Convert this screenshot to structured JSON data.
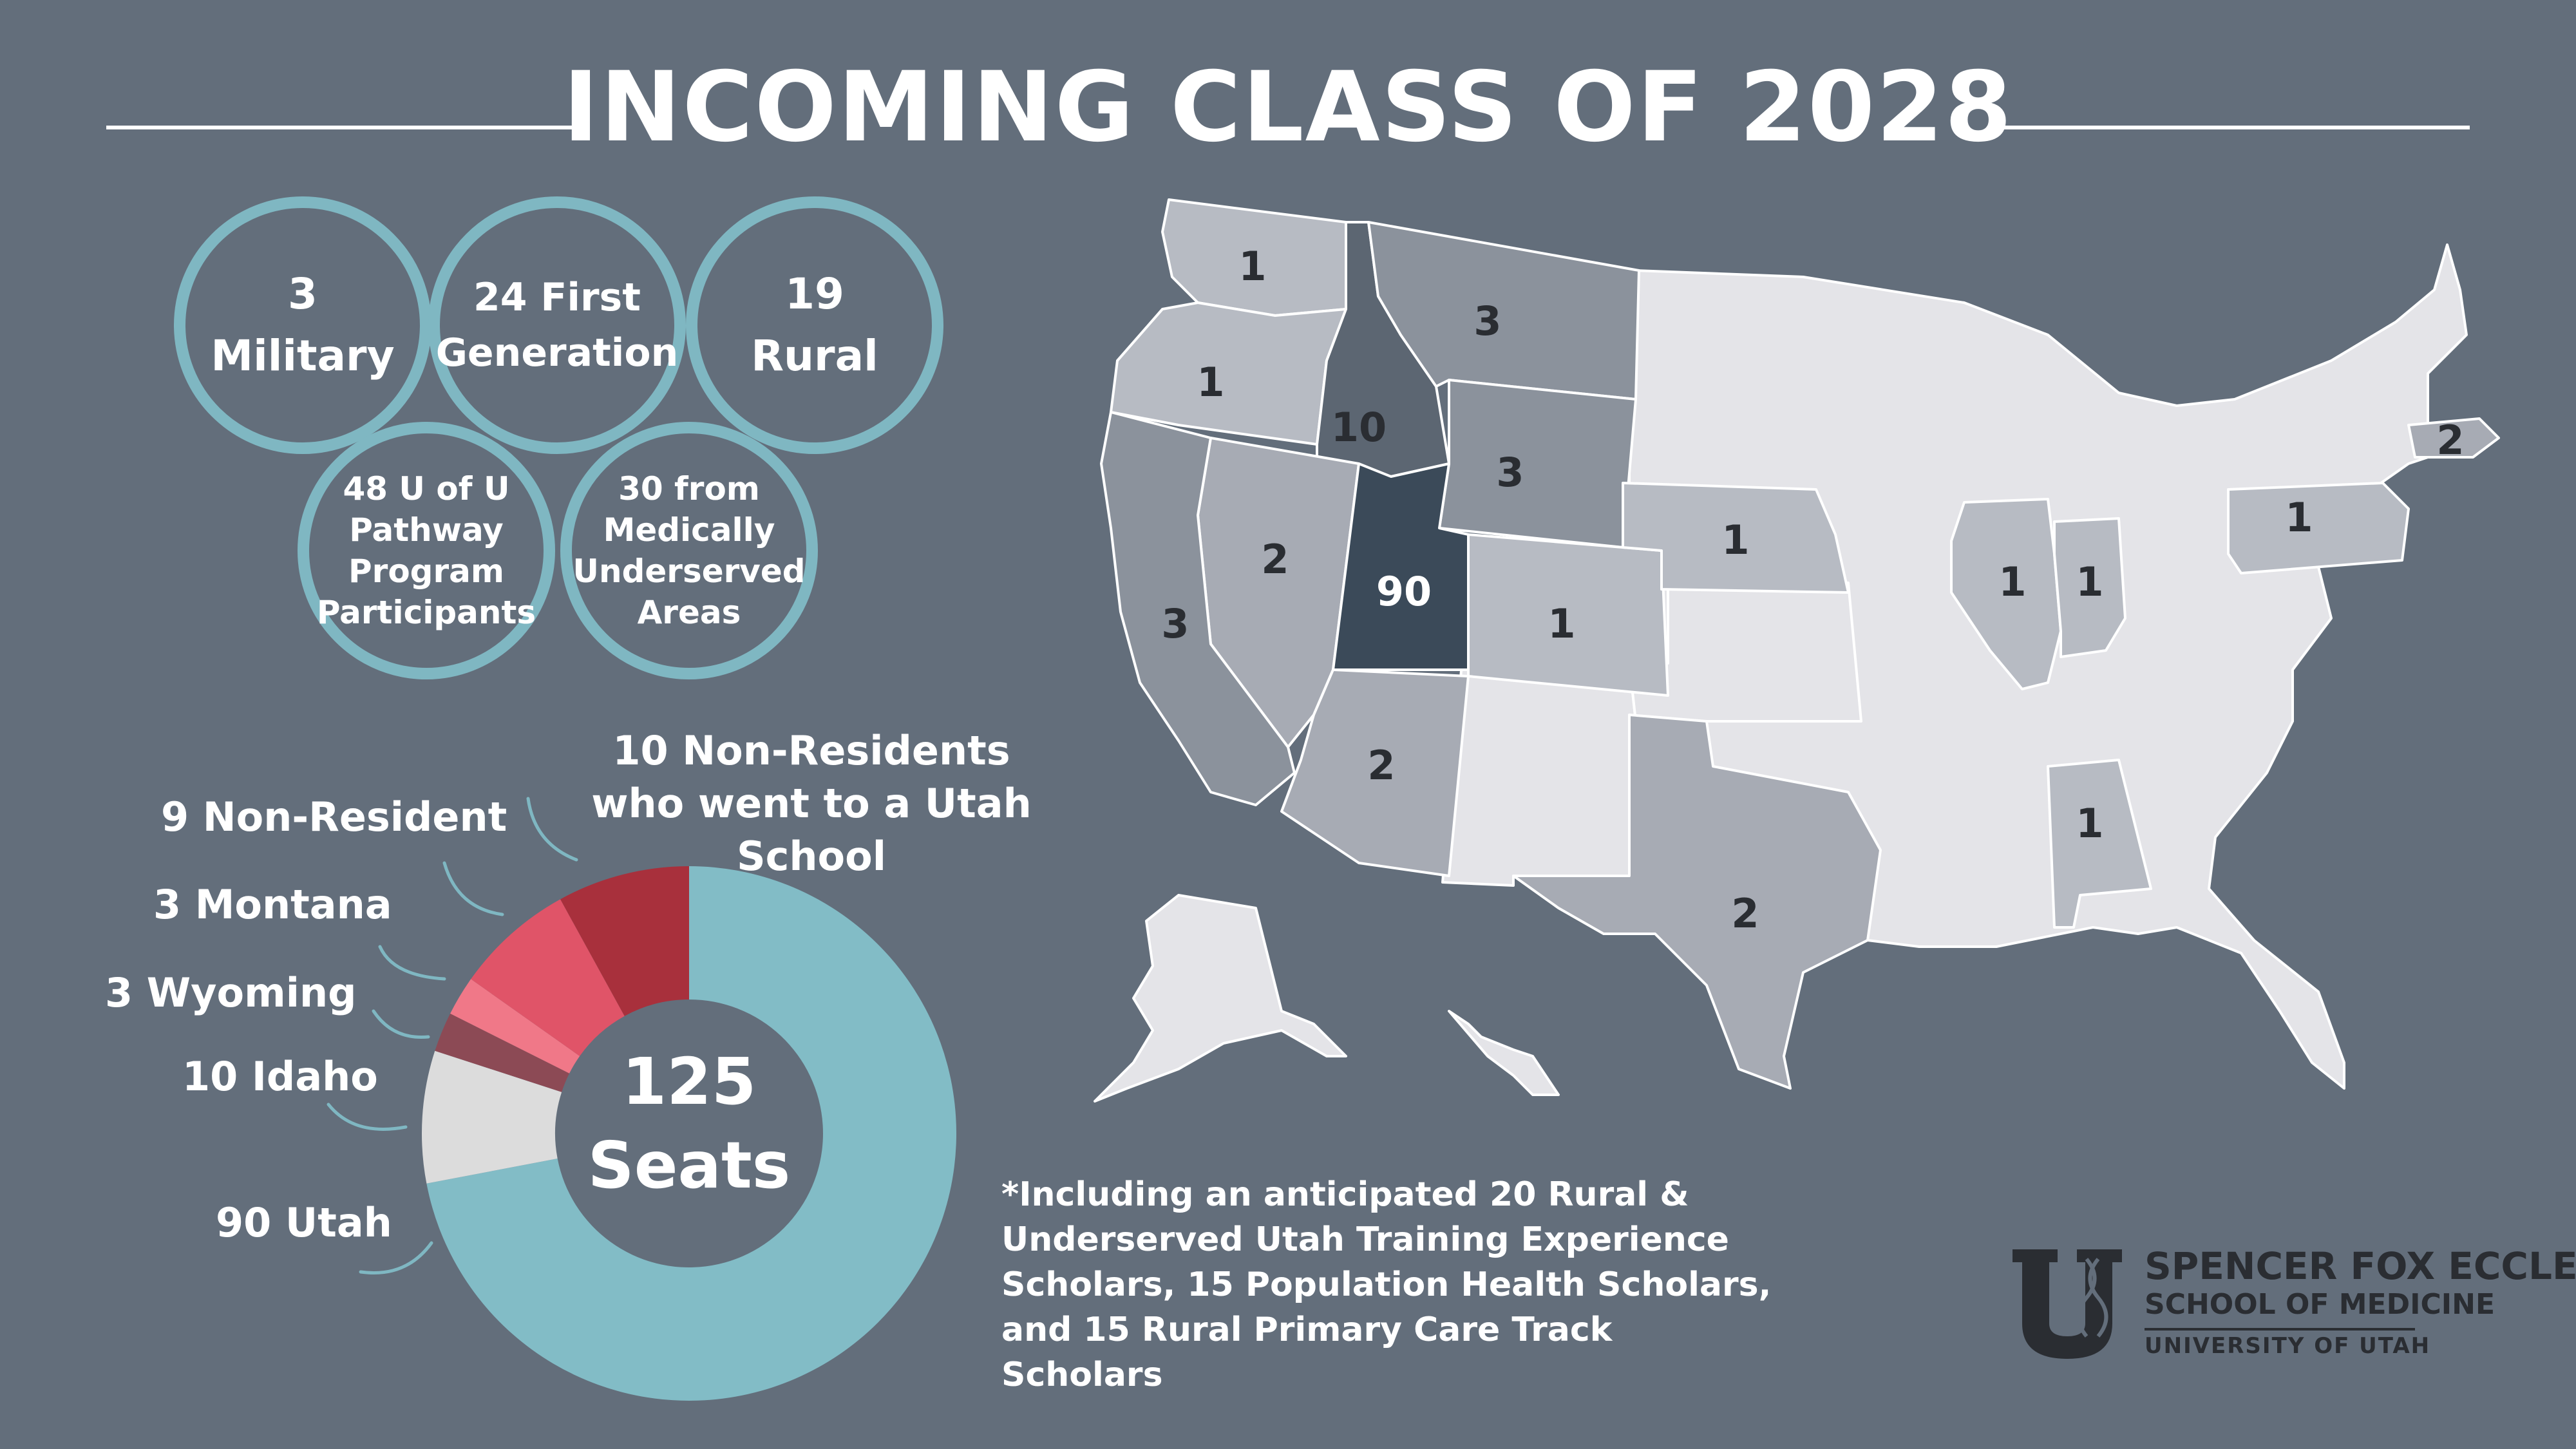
{
  "title": "INCOMING CLASS OF 2028",
  "stats": {
    "military": {
      "value": "3",
      "label": "Military"
    },
    "first_gen": {
      "line1": "24 First",
      "line2": "Generation"
    },
    "rural": {
      "value": "19",
      "label": "Rural"
    },
    "pathway": {
      "line1": "48 U of U",
      "line2": "Pathway",
      "line3": "Program",
      "line4": "Participants"
    },
    "underserved": {
      "line1": "30 from",
      "line2": "Medically",
      "line3": "Underserved",
      "line4": "Areas"
    }
  },
  "donut": {
    "center_line1": "125",
    "center_line2": "Seats",
    "labels": {
      "nonres_utah_school": "10 Non-Residents who went to a Utah School",
      "nonres": "9 Non-Resident",
      "montana": "3 Montana",
      "wyoming": "3 Wyoming",
      "idaho": "10 Idaho",
      "utah": "90 Utah"
    }
  },
  "chart_data": [
    {
      "type": "pie",
      "title": "125 Seats",
      "categories": [
        "90 Utah",
        "10 Idaho",
        "3 Wyoming",
        "3 Montana",
        "9 Non-Resident",
        "10 Non-Residents who went to a Utah School"
      ],
      "values": [
        90,
        10,
        3,
        3,
        9,
        10
      ],
      "colors": [
        "#82bcc6",
        "#dcdcdc",
        "#8c4a55",
        "#f07888",
        "#e05468",
        "#a8303c"
      ]
    },
    {
      "type": "heatmap",
      "title": "",
      "categories": [
        "WA",
        "OR",
        "ID",
        "MT",
        "WY",
        "NV",
        "UT",
        "CO",
        "CA",
        "AZ",
        "NE",
        "TX",
        "IL",
        "IN",
        "AL",
        "PA",
        "MA"
      ],
      "values": [
        1,
        1,
        10,
        3,
        3,
        2,
        90,
        1,
        3,
        2,
        1,
        2,
        1,
        1,
        1,
        1,
        2
      ]
    }
  ],
  "map": {
    "labels": {
      "WA": "1",
      "OR": "1",
      "ID": "10",
      "MT": "3",
      "WY": "3",
      "NV": "2",
      "UT": "90",
      "CO": "1",
      "CA": "3",
      "AZ": "2",
      "NE": "1",
      "TX": "2",
      "IL": "1",
      "IN": "1",
      "AL": "1",
      "PA": "1",
      "MA": "2"
    },
    "colors": {
      "none": "#e4e4e8",
      "one": "#b7bbc3",
      "two": "#a7abb4",
      "three": "#8b929c",
      "ten": "#5c6672",
      "ninety": "#3b4a59",
      "border": "#ffffff"
    }
  },
  "footnote": {
    "line1": "*Including an anticipated 20 Rural &",
    "line2": "Underserved Utah Training Experience",
    "line3": "Scholars, 15 Population Health Scholars,",
    "line4": "and 15 Rural Primary Care Track Scholars"
  },
  "logo": {
    "line1": "SPENCER FOX ECCLES",
    "line2": "SCHOOL OF MEDICINE",
    "line3": "UNIVERSITY OF UTAH"
  },
  "colors": {
    "background": "#636e7b",
    "circle_ring": "#7fb7c2",
    "text": "#ffffff",
    "logo": "#2a2d32"
  }
}
